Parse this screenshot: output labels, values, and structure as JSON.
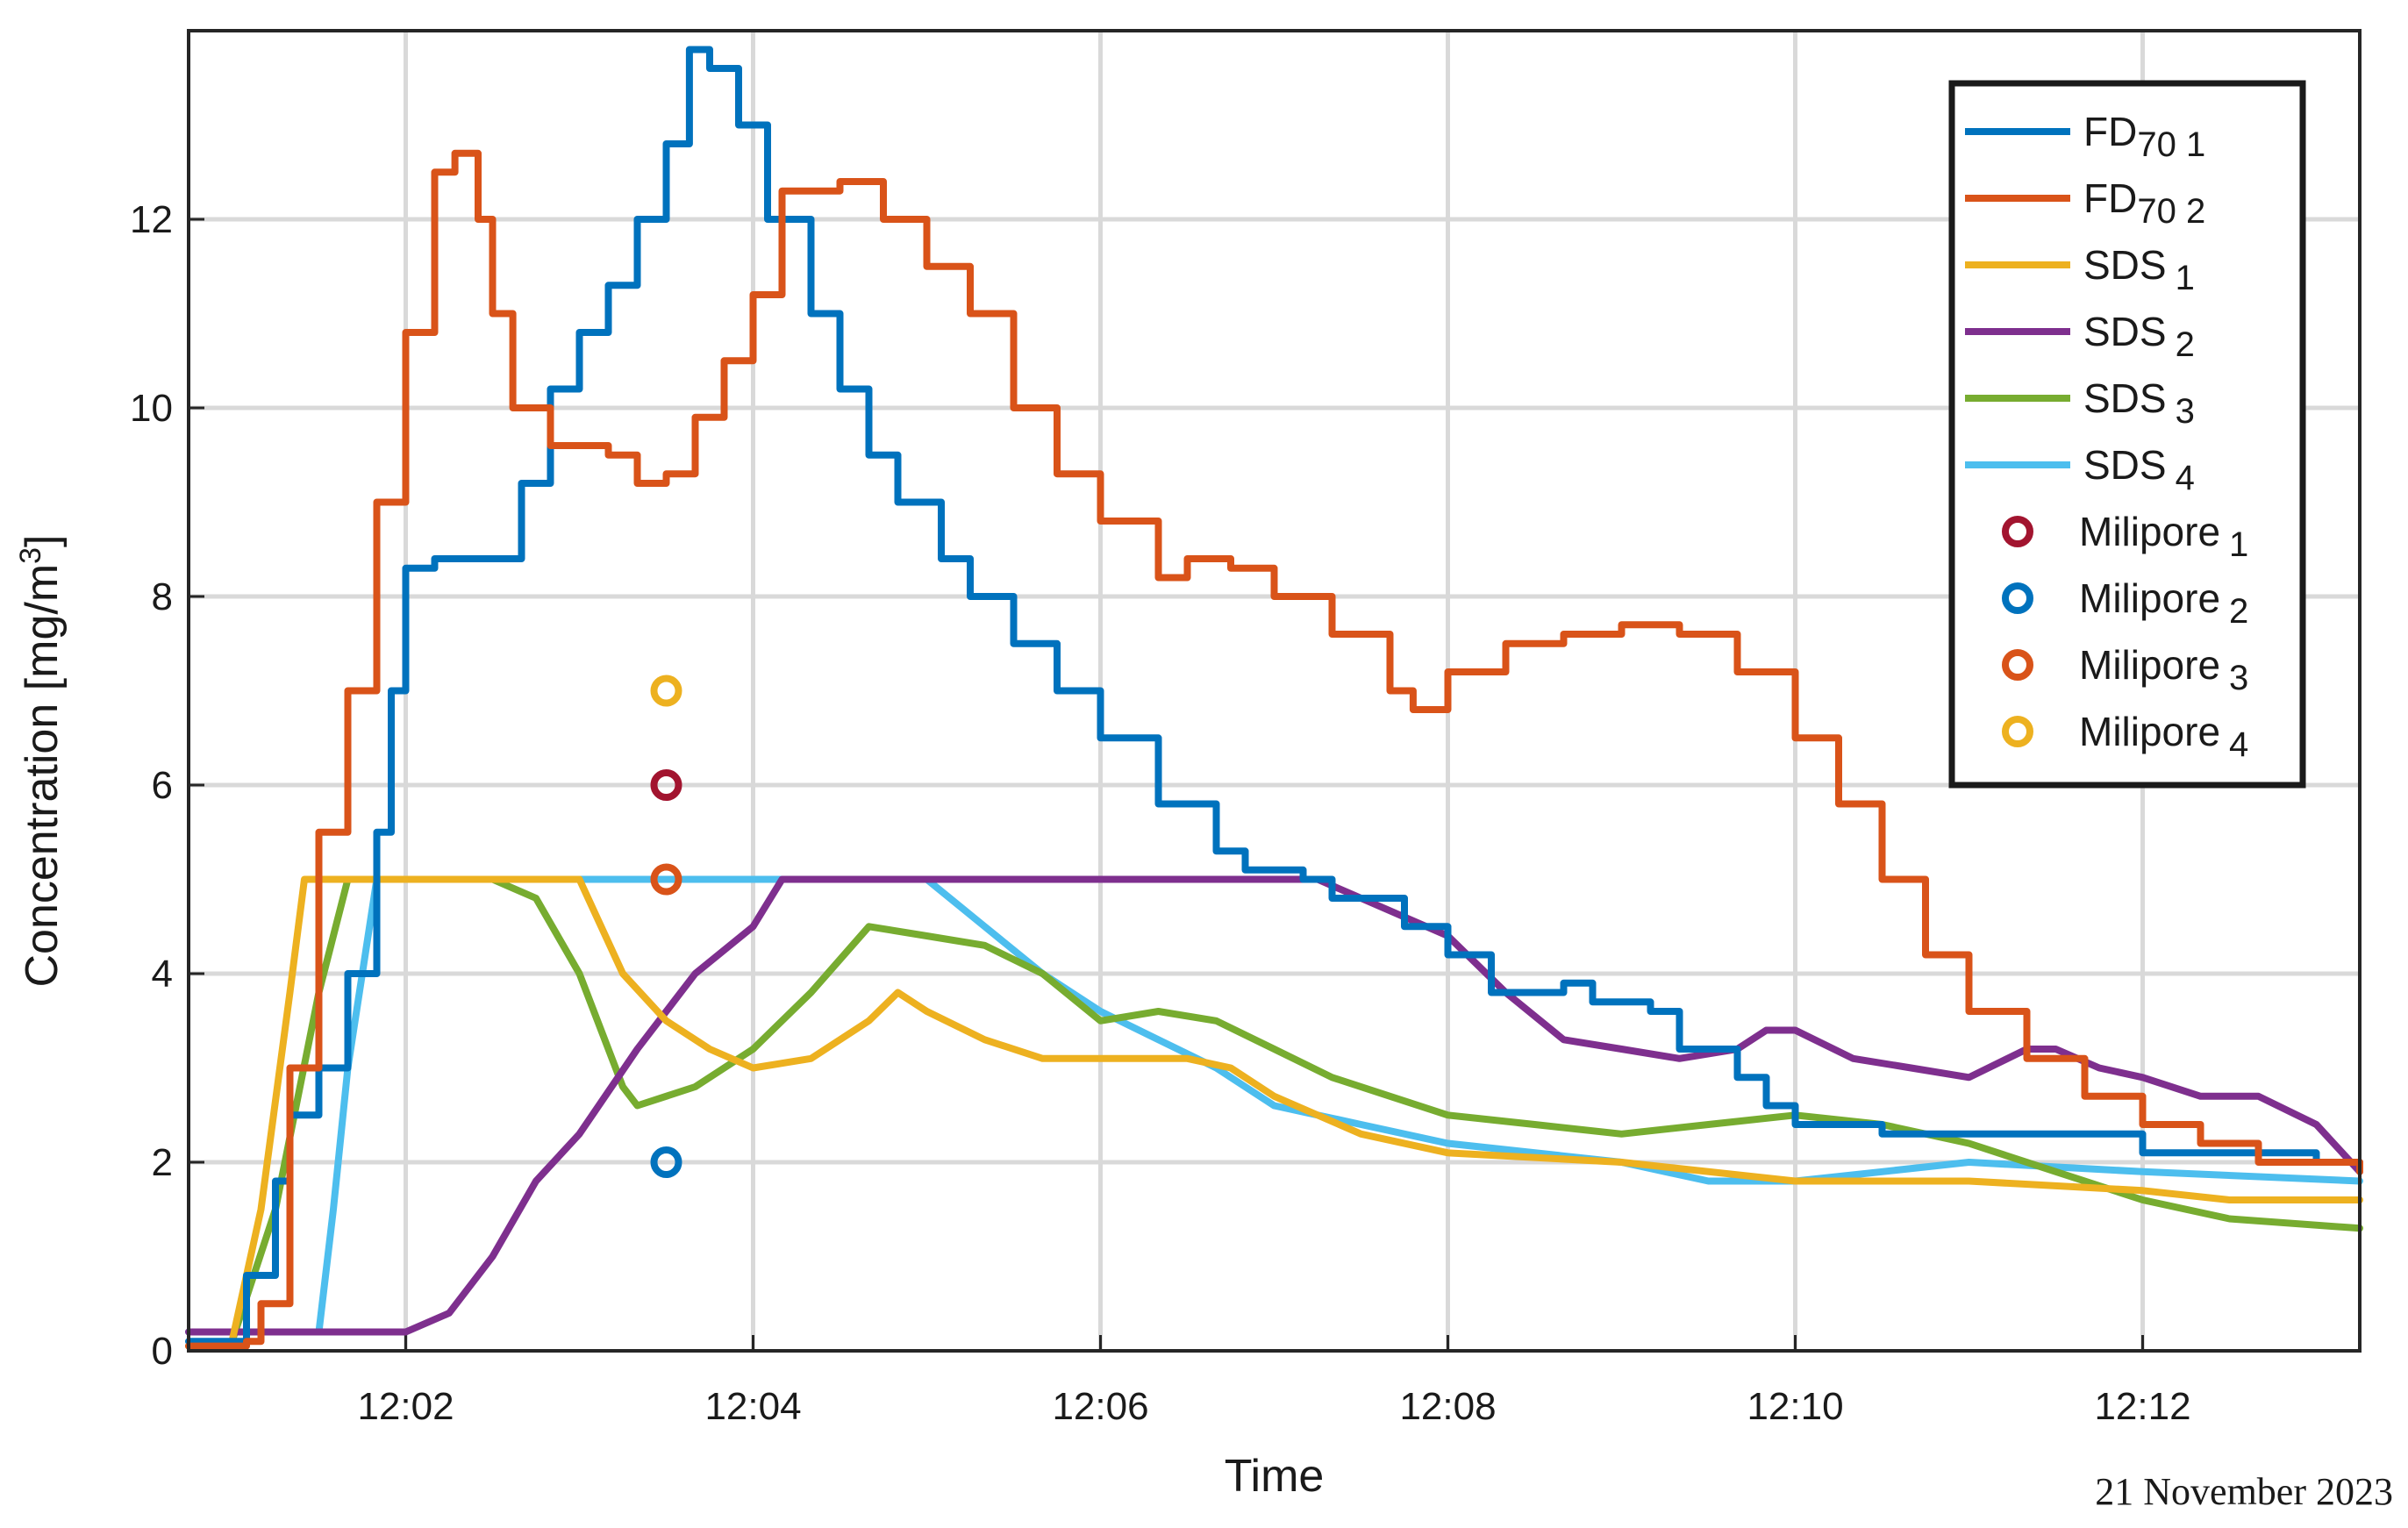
{
  "chart_data": {
    "type": "line",
    "xlabel": "Time",
    "ylabel": "Concentration [mg/m3]",
    "ylabel_parts": {
      "main": "Concentration [mg/m",
      "sup": "3",
      "end": "]"
    },
    "date_note": "21 November 2023",
    "x_unit": "minutes after 12:00",
    "xlim": [
      "12:00:45",
      "12:13:15"
    ],
    "ylim": [
      0,
      14
    ],
    "x_ticks": [
      "12:02",
      "12:04",
      "12:06",
      "12:08",
      "12:10",
      "12:12"
    ],
    "y_ticks": [
      "0",
      "2",
      "4",
      "6",
      "8",
      "10",
      "12"
    ],
    "grid": true,
    "legend_position": "top-right",
    "series": [
      {
        "legend_main": "FD",
        "legend_sub": "70",
        "legend_suffix": " 1",
        "color": "#0072BD",
        "kind": "line",
        "points": [
          [
            "12:00:45",
            0.1
          ],
          [
            "12:01:00",
            0.1
          ],
          [
            "12:01:05",
            0.8
          ],
          [
            "12:01:15",
            1.8
          ],
          [
            "12:01:20",
            2.5
          ],
          [
            "12:01:30",
            3.0
          ],
          [
            "12:01:40",
            4.0
          ],
          [
            "12:01:50",
            5.5
          ],
          [
            "12:01:55",
            7.0
          ],
          [
            "12:02:00",
            8.3
          ],
          [
            "12:02:10",
            8.4
          ],
          [
            "12:02:30",
            8.4
          ],
          [
            "12:02:40",
            9.2
          ],
          [
            "12:02:50",
            10.2
          ],
          [
            "12:03:00",
            10.8
          ],
          [
            "12:03:10",
            11.3
          ],
          [
            "12:03:20",
            12.0
          ],
          [
            "12:03:30",
            12.8
          ],
          [
            "12:03:38",
            13.8
          ],
          [
            "12:03:45",
            13.6
          ],
          [
            "12:03:55",
            13.0
          ],
          [
            "12:04:05",
            12.0
          ],
          [
            "12:04:20",
            11.0
          ],
          [
            "12:04:30",
            10.2
          ],
          [
            "12:04:40",
            9.5
          ],
          [
            "12:04:50",
            9.0
          ],
          [
            "12:05:05",
            8.4
          ],
          [
            "12:05:15",
            8.0
          ],
          [
            "12:05:30",
            7.5
          ],
          [
            "12:05:45",
            7.0
          ],
          [
            "12:06:00",
            6.5
          ],
          [
            "12:06:20",
            5.8
          ],
          [
            "12:06:40",
            5.3
          ],
          [
            "12:06:50",
            5.1
          ],
          [
            "12:07:10",
            5.0
          ],
          [
            "12:07:20",
            4.8
          ],
          [
            "12:07:45",
            4.5
          ],
          [
            "12:08:00",
            4.2
          ],
          [
            "12:08:15",
            3.8
          ],
          [
            "12:08:30",
            3.8
          ],
          [
            "12:08:40",
            3.9
          ],
          [
            "12:08:50",
            3.7
          ],
          [
            "12:09:10",
            3.6
          ],
          [
            "12:09:20",
            3.2
          ],
          [
            "12:09:40",
            2.9
          ],
          [
            "12:09:50",
            2.6
          ],
          [
            "12:10:00",
            2.4
          ],
          [
            "12:10:30",
            2.3
          ],
          [
            "12:11:30",
            2.3
          ],
          [
            "12:12:00",
            2.1
          ],
          [
            "12:13:00",
            2.0
          ],
          [
            "12:13:15",
            2.0
          ]
        ]
      },
      {
        "legend_main": "FD",
        "legend_sub": "70",
        "legend_suffix": " 2",
        "color": "#D95319",
        "kind": "line",
        "points": [
          [
            "12:00:45",
            0.05
          ],
          [
            "12:01:05",
            0.1
          ],
          [
            "12:01:10",
            0.5
          ],
          [
            "12:01:20",
            3.0
          ],
          [
            "12:01:30",
            5.5
          ],
          [
            "12:01:40",
            7.0
          ],
          [
            "12:01:50",
            9.0
          ],
          [
            "12:02:00",
            10.8
          ],
          [
            "12:02:10",
            12.5
          ],
          [
            "12:02:17",
            12.7
          ],
          [
            "12:02:25",
            12.0
          ],
          [
            "12:02:30",
            11.0
          ],
          [
            "12:02:37",
            10.0
          ],
          [
            "12:02:50",
            9.6
          ],
          [
            "12:03:05",
            9.6
          ],
          [
            "12:03:10",
            9.5
          ],
          [
            "12:03:20",
            9.2
          ],
          [
            "12:03:30",
            9.3
          ],
          [
            "12:03:40",
            9.9
          ],
          [
            "12:03:50",
            10.5
          ],
          [
            "12:04:00",
            11.2
          ],
          [
            "12:04:10",
            12.3
          ],
          [
            "12:04:30",
            12.4
          ],
          [
            "12:04:45",
            12.0
          ],
          [
            "12:05:00",
            11.5
          ],
          [
            "12:05:15",
            11.0
          ],
          [
            "12:05:30",
            10.0
          ],
          [
            "12:05:45",
            9.3
          ],
          [
            "12:06:00",
            8.8
          ],
          [
            "12:06:20",
            8.2
          ],
          [
            "12:06:30",
            8.4
          ],
          [
            "12:06:45",
            8.3
          ],
          [
            "12:07:00",
            8.0
          ],
          [
            "12:07:20",
            7.6
          ],
          [
            "12:07:40",
            7.0
          ],
          [
            "12:07:48",
            6.8
          ],
          [
            "12:08:00",
            7.2
          ],
          [
            "12:08:20",
            7.5
          ],
          [
            "12:08:40",
            7.6
          ],
          [
            "12:09:00",
            7.7
          ],
          [
            "12:09:20",
            7.6
          ],
          [
            "12:09:40",
            7.2
          ],
          [
            "12:10:00",
            6.5
          ],
          [
            "12:10:15",
            5.8
          ],
          [
            "12:10:30",
            5.0
          ],
          [
            "12:10:45",
            4.2
          ],
          [
            "12:11:00",
            3.6
          ],
          [
            "12:11:20",
            3.1
          ],
          [
            "12:11:40",
            2.7
          ],
          [
            "12:12:00",
            2.4
          ],
          [
            "12:12:20",
            2.2
          ],
          [
            "12:12:40",
            2.0
          ],
          [
            "12:13:15",
            1.9
          ]
        ]
      },
      {
        "legend_main": "SDS",
        "legend_sub": "1",
        "color": "#EDB120",
        "kind": "line",
        "points": [
          [
            "12:00:45",
            0.05
          ],
          [
            "12:01:00",
            0.1
          ],
          [
            "12:01:10",
            1.5
          ],
          [
            "12:01:20",
            3.8
          ],
          [
            "12:01:25",
            5.0
          ],
          [
            "12:02:30",
            5.0
          ],
          [
            "12:03:00",
            5.0
          ],
          [
            "12:03:15",
            4.0
          ],
          [
            "12:03:30",
            3.5
          ],
          [
            "12:03:45",
            3.2
          ],
          [
            "12:04:00",
            3.0
          ],
          [
            "12:04:20",
            3.1
          ],
          [
            "12:04:40",
            3.5
          ],
          [
            "12:04:50",
            3.8
          ],
          [
            "12:05:00",
            3.6
          ],
          [
            "12:05:20",
            3.3
          ],
          [
            "12:05:40",
            3.1
          ],
          [
            "12:06:00",
            3.1
          ],
          [
            "12:06:30",
            3.1
          ],
          [
            "12:06:45",
            3.0
          ],
          [
            "12:07:00",
            2.7
          ],
          [
            "12:07:30",
            2.3
          ],
          [
            "12:08:00",
            2.1
          ],
          [
            "12:09:00",
            2.0
          ],
          [
            "12:10:00",
            1.8
          ],
          [
            "12:11:00",
            1.8
          ],
          [
            "12:12:00",
            1.7
          ],
          [
            "12:12:30",
            1.6
          ],
          [
            "12:13:15",
            1.6
          ]
        ]
      },
      {
        "legend_main": "SDS",
        "legend_sub": "2",
        "color": "#7E2F8E",
        "kind": "line",
        "points": [
          [
            "12:00:45",
            0.2
          ],
          [
            "12:01:30",
            0.2
          ],
          [
            "12:02:00",
            0.2
          ],
          [
            "12:02:15",
            0.4
          ],
          [
            "12:02:30",
            1.0
          ],
          [
            "12:02:45",
            1.8
          ],
          [
            "12:03:00",
            2.3
          ],
          [
            "12:03:20",
            3.2
          ],
          [
            "12:03:40",
            4.0
          ],
          [
            "12:04:00",
            4.5
          ],
          [
            "12:04:10",
            5.0
          ],
          [
            "12:05:00",
            5.0
          ],
          [
            "12:06:00",
            5.0
          ],
          [
            "12:07:00",
            5.0
          ],
          [
            "12:07:15",
            5.0
          ],
          [
            "12:07:30",
            4.8
          ],
          [
            "12:08:00",
            4.4
          ],
          [
            "12:08:20",
            3.8
          ],
          [
            "12:08:40",
            3.3
          ],
          [
            "12:09:00",
            3.2
          ],
          [
            "12:09:20",
            3.1
          ],
          [
            "12:09:40",
            3.2
          ],
          [
            "12:09:50",
            3.4
          ],
          [
            "12:10:00",
            3.4
          ],
          [
            "12:10:20",
            3.1
          ],
          [
            "12:10:40",
            3.0
          ],
          [
            "12:11:00",
            2.9
          ],
          [
            "12:11:20",
            3.2
          ],
          [
            "12:11:30",
            3.2
          ],
          [
            "12:11:45",
            3.0
          ],
          [
            "12:12:00",
            2.9
          ],
          [
            "12:12:20",
            2.7
          ],
          [
            "12:12:40",
            2.7
          ],
          [
            "12:13:00",
            2.4
          ],
          [
            "12:13:15",
            1.9
          ]
        ]
      },
      {
        "legend_main": "SDS",
        "legend_sub": "3",
        "color": "#77AC30",
        "kind": "line",
        "points": [
          [
            "12:00:45",
            0.05
          ],
          [
            "12:01:00",
            0.1
          ],
          [
            "12:01:15",
            1.5
          ],
          [
            "12:01:30",
            3.8
          ],
          [
            "12:01:40",
            5.0
          ],
          [
            "12:02:00",
            5.0
          ],
          [
            "12:02:30",
            5.0
          ],
          [
            "12:02:45",
            4.8
          ],
          [
            "12:03:00",
            4.0
          ],
          [
            "12:03:15",
            2.8
          ],
          [
            "12:03:20",
            2.6
          ],
          [
            "12:03:40",
            2.8
          ],
          [
            "12:04:00",
            3.2
          ],
          [
            "12:04:20",
            3.8
          ],
          [
            "12:04:40",
            4.5
          ],
          [
            "12:05:00",
            4.4
          ],
          [
            "12:05:20",
            4.3
          ],
          [
            "12:05:40",
            4.0
          ],
          [
            "12:06:00",
            3.5
          ],
          [
            "12:06:20",
            3.6
          ],
          [
            "12:06:40",
            3.5
          ],
          [
            "12:07:00",
            3.2
          ],
          [
            "12:07:20",
            2.9
          ],
          [
            "12:07:40",
            2.7
          ],
          [
            "12:08:00",
            2.5
          ],
          [
            "12:08:30",
            2.4
          ],
          [
            "12:09:00",
            2.3
          ],
          [
            "12:09:30",
            2.4
          ],
          [
            "12:10:00",
            2.5
          ],
          [
            "12:10:30",
            2.4
          ],
          [
            "12:11:00",
            2.2
          ],
          [
            "12:11:30",
            1.9
          ],
          [
            "12:12:00",
            1.6
          ],
          [
            "12:12:30",
            1.4
          ],
          [
            "12:13:15",
            1.3
          ]
        ]
      },
      {
        "legend_main": "SDS",
        "legend_sub": "4",
        "color": "#4DBEEE",
        "kind": "line",
        "points": [
          [
            "12:00:45",
            0.2
          ],
          [
            "12:01:30",
            0.2
          ],
          [
            "12:01:35",
            1.5
          ],
          [
            "12:01:40",
            3.0
          ],
          [
            "12:01:50",
            5.0
          ],
          [
            "12:02:30",
            5.0
          ],
          [
            "12:03:30",
            5.0
          ],
          [
            "12:04:30",
            5.0
          ],
          [
            "12:05:00",
            5.0
          ],
          [
            "12:05:20",
            4.5
          ],
          [
            "12:05:40",
            4.0
          ],
          [
            "12:06:00",
            3.6
          ],
          [
            "12:06:20",
            3.3
          ],
          [
            "12:06:40",
            3.0
          ],
          [
            "12:07:00",
            2.6
          ],
          [
            "12:07:30",
            2.4
          ],
          [
            "12:08:00",
            2.2
          ],
          [
            "12:09:00",
            2.0
          ],
          [
            "12:09:30",
            1.8
          ],
          [
            "12:10:00",
            1.8
          ],
          [
            "12:10:30",
            1.9
          ],
          [
            "12:11:00",
            2.0
          ],
          [
            "12:12:00",
            1.9
          ],
          [
            "12:13:15",
            1.8
          ]
        ]
      },
      {
        "legend_main": "Milipore",
        "legend_sub": "1",
        "color": "#A2142F",
        "kind": "marker",
        "points": [
          [
            "12:03:30",
            6.0
          ]
        ]
      },
      {
        "legend_main": "Milipore",
        "legend_sub": "2",
        "color": "#0072BD",
        "kind": "marker",
        "points": [
          [
            "12:03:30",
            2.0
          ]
        ]
      },
      {
        "legend_main": "Milipore",
        "legend_sub": "3",
        "color": "#D95319",
        "kind": "marker",
        "points": [
          [
            "12:03:30",
            5.0
          ]
        ]
      },
      {
        "legend_main": "Milipore",
        "legend_sub": "4",
        "color": "#EDB120",
        "kind": "marker",
        "points": [
          [
            "12:03:30",
            7.0
          ]
        ]
      }
    ]
  }
}
